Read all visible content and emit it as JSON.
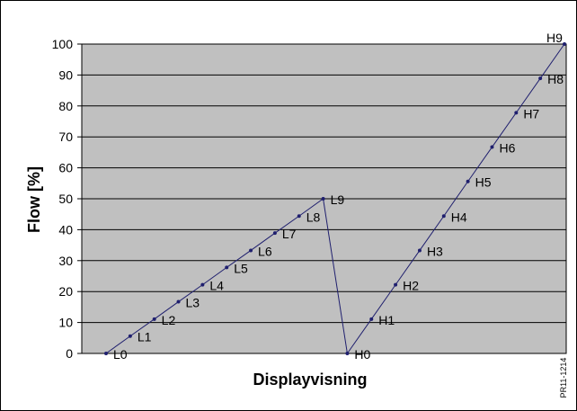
{
  "chart_data": {
    "type": "line",
    "title": "",
    "xlabel": "Displayvisning",
    "ylabel": "Flow [%]",
    "ylim": [
      0,
      100
    ],
    "yticks": [
      "0",
      "10",
      "20",
      "30",
      "40",
      "50",
      "60",
      "70",
      "80",
      "90",
      "100"
    ],
    "grid": "horizontal",
    "legend": "none",
    "colors": {
      "plot_bg": "#c0c0c0",
      "line": "#1f1f6e",
      "grid": "#000000"
    },
    "series": [
      {
        "points": [
          {
            "label": "L0",
            "y": 0
          },
          {
            "label": "L1",
            "y": 5.6
          },
          {
            "label": "L2",
            "y": 11.1
          },
          {
            "label": "L3",
            "y": 16.7
          },
          {
            "label": "L4",
            "y": 22.2
          },
          {
            "label": "L5",
            "y": 27.8
          },
          {
            "label": "L6",
            "y": 33.3
          },
          {
            "label": "L7",
            "y": 38.9
          },
          {
            "label": "L8",
            "y": 44.4
          },
          {
            "label": "L9",
            "y": 50
          },
          {
            "label": "H0",
            "y": 0
          },
          {
            "label": "H1",
            "y": 11.1
          },
          {
            "label": "H2",
            "y": 22.2
          },
          {
            "label": "H3",
            "y": 33.3
          },
          {
            "label": "H4",
            "y": 44.4
          },
          {
            "label": "H5",
            "y": 55.6
          },
          {
            "label": "H6",
            "y": 66.7
          },
          {
            "label": "H7",
            "y": 77.8
          },
          {
            "label": "H8",
            "y": 88.9
          },
          {
            "label": "H9",
            "y": 100
          }
        ]
      }
    ]
  },
  "figure_code": "PR11-1214"
}
